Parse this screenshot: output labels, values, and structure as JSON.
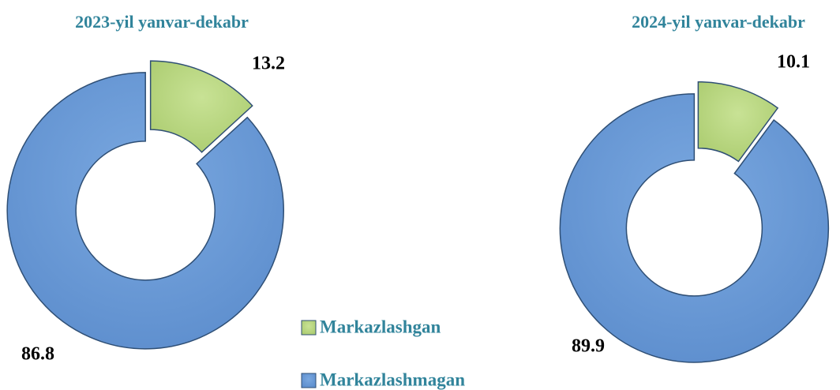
{
  "chart_data": [
    {
      "type": "donut",
      "title": "2023-yil yanvar-dekabr",
      "categories": [
        "Markazlashgan",
        "Markazlashmagan"
      ],
      "colors": [
        "#aacb6e",
        "#5b8ccc"
      ],
      "values": [
        13.2,
        86.8
      ]
    },
    {
      "type": "donut",
      "title": "2024-yil yanvar-dekabr",
      "values": [
        10.1,
        89.9
      ]
    }
  ]
}
